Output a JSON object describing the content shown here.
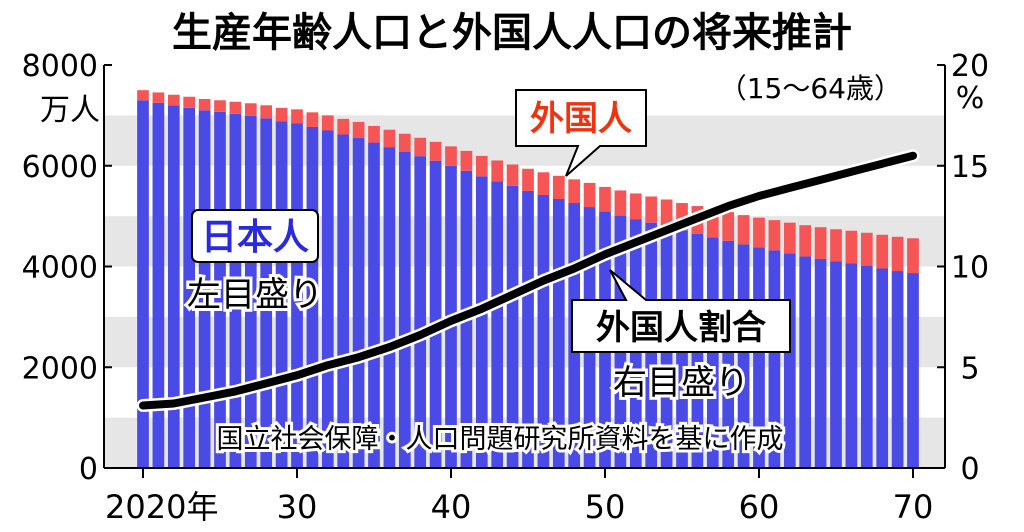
{
  "chart_data": {
    "type": "bar",
    "title": "生産年齢人口と外国人人口の将来推計",
    "subtitle": "（15～64歳）",
    "left_axis": {
      "ticks": [
        "0",
        "2000",
        "4000",
        "6000",
        "8000"
      ],
      "unit": "万人",
      "min": 0,
      "max": 8000
    },
    "right_axis": {
      "ticks": [
        "0",
        "5",
        "10",
        "15",
        "20"
      ],
      "unit": "%",
      "min": 0,
      "max": 20
    },
    "x_axis": {
      "ticks": [
        "2020年",
        "30",
        "40",
        "50",
        "60",
        "70"
      ],
      "tick_years": [
        2020,
        2030,
        2040,
        2050,
        2060,
        2070
      ]
    },
    "years": [
      2020,
      2021,
      2022,
      2023,
      2024,
      2025,
      2026,
      2027,
      2028,
      2029,
      2030,
      2031,
      2032,
      2033,
      2034,
      2035,
      2036,
      2037,
      2038,
      2039,
      2040,
      2041,
      2042,
      2043,
      2044,
      2045,
      2046,
      2047,
      2048,
      2049,
      2050,
      2051,
      2052,
      2053,
      2054,
      2055,
      2056,
      2057,
      2058,
      2059,
      2060,
      2061,
      2062,
      2063,
      2064,
      2065,
      2066,
      2067,
      2068,
      2069,
      2070
    ],
    "series": [
      {
        "name": "日本人",
        "axis": "left",
        "color": "#4a4ae6",
        "values": [
          7300,
          7250,
          7200,
          7150,
          7100,
          7070,
          7030,
          6990,
          6940,
          6880,
          6840,
          6770,
          6700,
          6620,
          6550,
          6460,
          6370,
          6280,
          6190,
          6100,
          6000,
          5900,
          5790,
          5690,
          5600,
          5500,
          5420,
          5340,
          5260,
          5180,
          5090,
          5010,
          4940,
          4870,
          4800,
          4720,
          4650,
          4580,
          4510,
          4440,
          4380,
          4320,
          4260,
          4200,
          4150,
          4100,
          4060,
          4010,
          3960,
          3910,
          3870
        ]
      },
      {
        "name": "外国人",
        "axis": "left",
        "color": "#f55555",
        "values": [
          200,
          205,
          210,
          220,
          225,
          230,
          240,
          250,
          260,
          270,
          280,
          290,
          300,
          310,
          320,
          330,
          345,
          355,
          365,
          375,
          385,
          395,
          405,
          415,
          425,
          440,
          450,
          460,
          470,
          480,
          490,
          500,
          510,
          520,
          530,
          540,
          550,
          560,
          570,
          580,
          590,
          600,
          610,
          620,
          630,
          640,
          650,
          660,
          670,
          680,
          690
        ]
      },
      {
        "name": "外国人割合",
        "axis": "right",
        "type": "line",
        "color": "#000000",
        "x": [
          2020,
          2022,
          2024,
          2026,
          2028,
          2030,
          2032,
          2034,
          2036,
          2038,
          2040,
          2042,
          2044,
          2046,
          2048,
          2050,
          2052,
          2054,
          2056,
          2058,
          2060,
          2062,
          2064,
          2066,
          2068,
          2070
        ],
        "values": [
          3.1,
          3.2,
          3.5,
          3.8,
          4.2,
          4.6,
          5.1,
          5.5,
          6.0,
          6.6,
          7.3,
          7.9,
          8.6,
          9.3,
          9.9,
          10.6,
          11.2,
          11.8,
          12.4,
          13.0,
          13.5,
          13.9,
          14.3,
          14.7,
          15.1,
          15.5
        ]
      }
    ],
    "annotations": {
      "japanese_label": "日本人",
      "japanese_axis_note": "左目盛り",
      "foreign_label": "外国人",
      "ratio_label": "外国人割合",
      "ratio_axis_note": "右目盛り",
      "source": "国立社会保障・人口問題研究所資料を基に作成"
    },
    "colors": {
      "band": "#e6e6e6",
      "japanese_label_color": "#2a2add",
      "foreign_label_color": "#ee3311"
    },
    "legend": "none",
    "grid": "alternating horizontal bands"
  }
}
